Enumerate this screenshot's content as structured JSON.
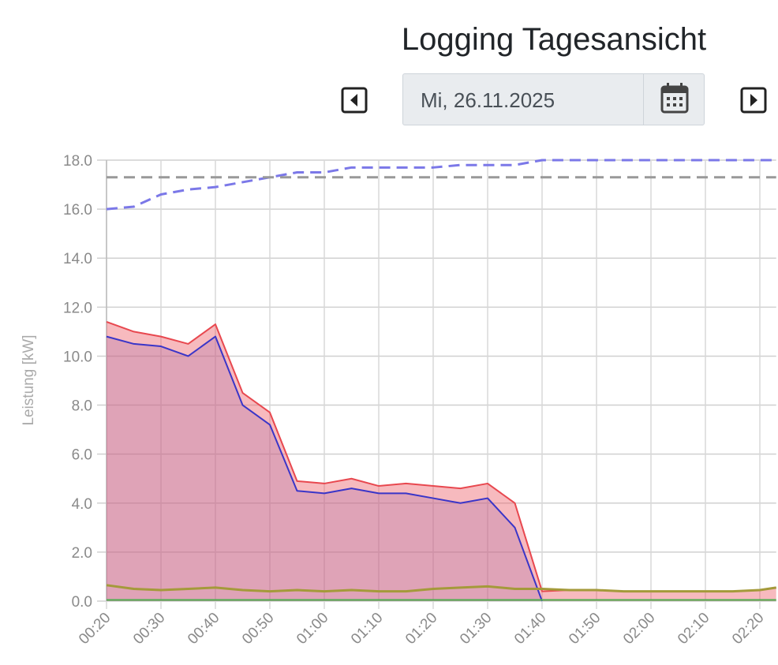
{
  "header": {
    "title": "Logging Tagesansicht",
    "date": "Mi, 26.11.2025"
  },
  "chart_data": {
    "type": "line",
    "y_label": "Leistung [kW]",
    "x": [
      "00:20",
      "00:25",
      "00:30",
      "00:35",
      "00:40",
      "00:45",
      "00:50",
      "00:55",
      "01:00",
      "01:05",
      "01:10",
      "01:15",
      "01:20",
      "01:25",
      "01:30",
      "01:35",
      "01:40",
      "01:45",
      "01:50",
      "01:55",
      "02:00",
      "02:05",
      "02:10",
      "02:15",
      "02:20",
      "02:23"
    ],
    "xlim": [
      "00:20",
      "02:23"
    ],
    "xticks": [
      "00:20",
      "00:30",
      "00:40",
      "00:50",
      "01:00",
      "01:10",
      "01:20",
      "01:30",
      "01:40",
      "01:50",
      "02:00",
      "02:10",
      "02:20"
    ],
    "ylim": [
      0,
      18
    ],
    "yticks": [
      {
        "value": 0,
        "label": "0.0"
      },
      {
        "value": 2,
        "label": "2.0"
      },
      {
        "value": 4,
        "label": "4.0"
      },
      {
        "value": 6,
        "label": "6.0"
      },
      {
        "value": 8,
        "label": "8.0"
      },
      {
        "value": 10,
        "label": "10.0"
      },
      {
        "value": 12,
        "label": "12.0"
      },
      {
        "value": 14,
        "label": "14.0"
      },
      {
        "value": 16,
        "label": "16.0"
      },
      {
        "value": 18,
        "label": "18.0"
      }
    ],
    "grid": true,
    "series": [
      {
        "color": "#e8484f",
        "fill": "rgba(236,90,100,0.42)",
        "values": [
          11.4,
          11.0,
          10.8,
          10.5,
          11.3,
          8.5,
          7.7,
          4.9,
          4.8,
          5.0,
          4.7,
          4.8,
          4.7,
          4.6,
          4.8,
          4.0,
          0.4,
          0.45,
          0.45,
          0.4,
          0.4,
          0.4,
          0.4,
          0.4,
          0.45,
          0.55
        ]
      },
      {
        "color": "#3a35c8",
        "fill": "rgba(170,110,170,0.3)",
        "values": [
          10.8,
          10.5,
          10.4,
          10.0,
          10.8,
          8.0,
          7.2,
          4.5,
          4.4,
          4.6,
          4.4,
          4.4,
          4.2,
          4.0,
          4.2,
          3.0,
          0.0,
          null,
          null,
          null,
          null,
          null,
          null,
          null,
          null,
          null
        ]
      },
      {
        "color": "#a49a3a",
        "width": 3,
        "values": [
          0.65,
          0.5,
          0.45,
          0.5,
          0.55,
          0.45,
          0.4,
          0.45,
          0.4,
          0.45,
          0.4,
          0.4,
          0.5,
          0.55,
          0.6,
          0.5,
          0.5,
          0.45,
          0.45,
          0.4,
          0.4,
          0.4,
          0.4,
          0.4,
          0.45,
          0.55
        ]
      },
      {
        "color": "#4caf50",
        "width": 2,
        "values": [
          0.05,
          0.05,
          0.05,
          0.05,
          0.05,
          0.05,
          0.05,
          0.05,
          0.05,
          0.05,
          0.05,
          0.05,
          0.05,
          0.05,
          0.05,
          0.05,
          0.05,
          0.05,
          0.05,
          0.05,
          0.05,
          0.05,
          0.05,
          0.05,
          0.05,
          0.05
        ]
      },
      {
        "color": "#7b78e8",
        "dash": true,
        "width": 3,
        "values": [
          16.0,
          16.1,
          16.6,
          16.8,
          16.9,
          17.1,
          17.3,
          17.5,
          17.5,
          17.7,
          17.7,
          17.7,
          17.7,
          17.8,
          17.8,
          17.8,
          18.0,
          18.0,
          18.0,
          18.0,
          18.0,
          18.0,
          18.0,
          18.0,
          18.0,
          18.0
        ]
      },
      {
        "color": "#999999",
        "dash": true,
        "width": 3,
        "values": [
          17.3,
          17.3,
          17.3,
          17.3,
          17.3,
          17.3,
          17.3,
          17.3,
          17.3,
          17.3,
          17.3,
          17.3,
          17.3,
          17.3,
          17.3,
          17.3,
          17.3,
          17.3,
          17.3,
          17.3,
          17.3,
          17.3,
          17.3,
          17.3,
          17.3,
          17.3
        ]
      }
    ]
  }
}
